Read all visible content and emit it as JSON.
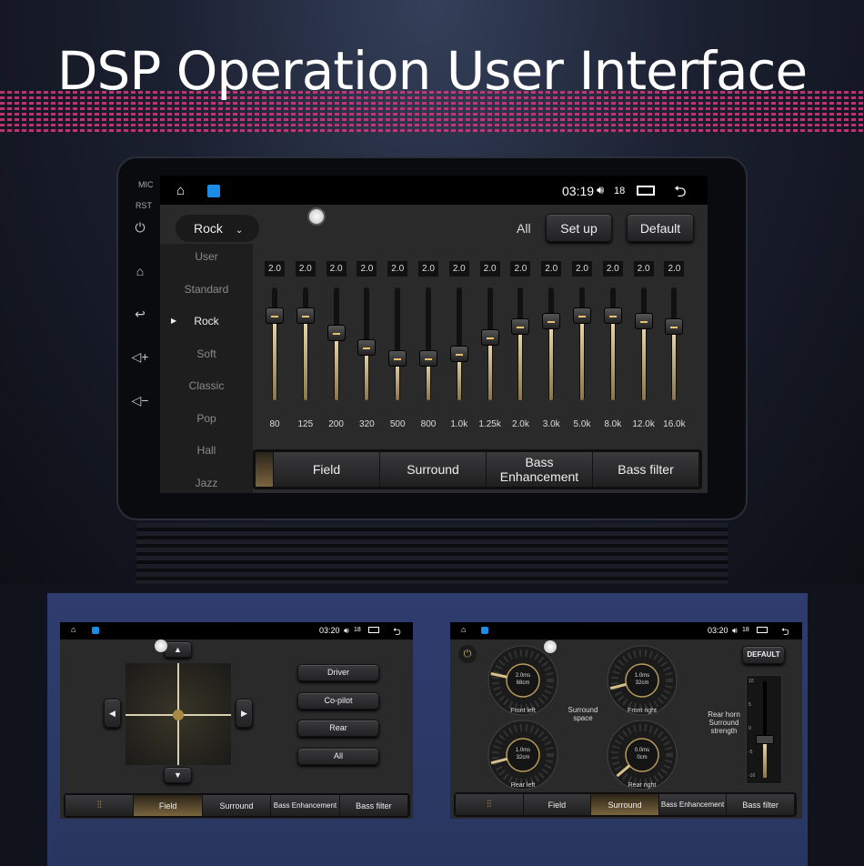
{
  "banner_title": "DSP Operation User Interface",
  "bezel": {
    "mic": "MIC",
    "rst": "RST"
  },
  "main": {
    "time": "03:19",
    "volume": "18",
    "preset": "Rock",
    "presets": [
      "User",
      "Standard",
      "Rock",
      "Soft",
      "Classic",
      "Pop",
      "Hall",
      "Jazz"
    ],
    "selected_preset": "Rock",
    "all_label": "All",
    "setup_label": "Set up",
    "default_label": "Default",
    "eq": [
      {
        "freq": "80",
        "value": "2.0",
        "level": 0.75
      },
      {
        "freq": "125",
        "value": "2.0",
        "level": 0.75
      },
      {
        "freq": "200",
        "value": "2.0",
        "level": 0.6
      },
      {
        "freq": "320",
        "value": "2.0",
        "level": 0.47
      },
      {
        "freq": "500",
        "value": "2.0",
        "level": 0.37
      },
      {
        "freq": "800",
        "value": "2.0",
        "level": 0.37
      },
      {
        "freq": "1.0k",
        "value": "2.0",
        "level": 0.41
      },
      {
        "freq": "1.25k",
        "value": "2.0",
        "level": 0.56
      },
      {
        "freq": "2.0k",
        "value": "2.0",
        "level": 0.65
      },
      {
        "freq": "3.0k",
        "value": "2.0",
        "level": 0.7
      },
      {
        "freq": "5.0k",
        "value": "2.0",
        "level": 0.75
      },
      {
        "freq": "8.0k",
        "value": "2.0",
        "level": 0.75
      },
      {
        "freq": "12.0k",
        "value": "2.0",
        "level": 0.7
      },
      {
        "freq": "16.0k",
        "value": "2.0",
        "level": 0.65
      }
    ],
    "tabs": [
      "Field",
      "Surround",
      "Bass Enhancement",
      "Bass filter"
    ]
  },
  "field": {
    "time": "03:20",
    "volume": "18",
    "buttons": [
      "Driver",
      "Co-pilot",
      "Rear",
      "All"
    ],
    "tabs": [
      "Field",
      "Surround",
      "Bass Enhancement",
      "Bass filter"
    ],
    "active_tab": "Field"
  },
  "surround": {
    "time": "03:20",
    "volume": "18",
    "default_label": "DEFAULT",
    "space_label": "Surround space",
    "strength_label": "Rear horn Surround strength",
    "strength_value": -2,
    "strength_ticks": [
      "10",
      "5",
      "0",
      "-5",
      "-10"
    ],
    "dials": [
      {
        "label": "Front left",
        "delay": "2.0ms",
        "distance": "68cm",
        "level": 0.2
      },
      {
        "label": "Front right",
        "delay": "1.0ms",
        "distance": "32cm",
        "level": 0.1
      },
      {
        "label": "Rear left",
        "delay": "1.0ms",
        "distance": "32cm",
        "level": 0.1
      },
      {
        "label": "Rear right",
        "delay": "0.0ms",
        "distance": "0cm",
        "level": 0
      }
    ],
    "tabs": [
      "Field",
      "Surround",
      "Bass Enhancement",
      "Bass filter"
    ],
    "active_tab": "Surround"
  },
  "colors": {
    "accent_gold": "#c8a865",
    "eq_pink": "#d23c7e",
    "panel_blue": "#2e3d6e"
  }
}
